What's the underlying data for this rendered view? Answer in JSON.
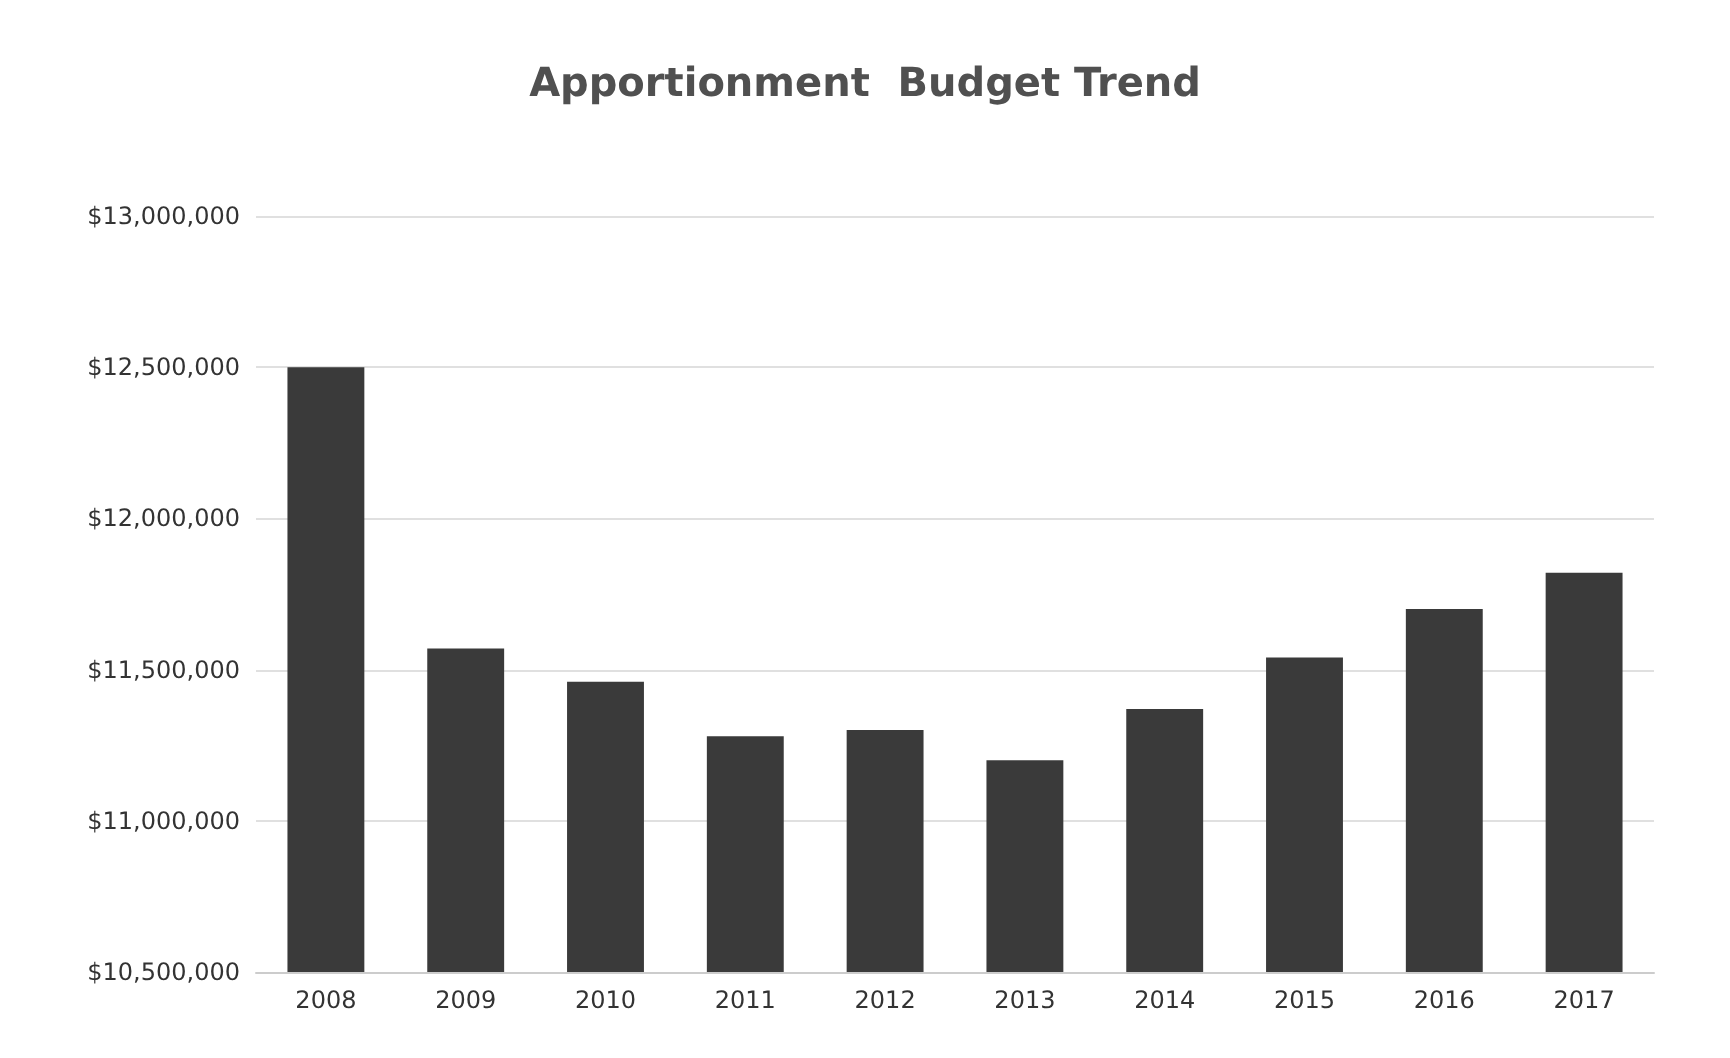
{
  "chart_data": {
    "type": "bar",
    "title": "Apportionment  Budget Trend",
    "categories": [
      "2008",
      "2009",
      "2010",
      "2011",
      "2012",
      "2013",
      "2014",
      "2015",
      "2016",
      "2017"
    ],
    "values": [
      12500000,
      11570000,
      11460000,
      11280000,
      11300000,
      11200000,
      11370000,
      11540000,
      11700000,
      11820000
    ],
    "color": "#3a3a3a",
    "ylim": [
      10500000,
      13000000
    ],
    "yticks": [
      {
        "value": 10500000,
        "label": "$10,500,000"
      },
      {
        "value": 11000000,
        "label": "$11,000,000"
      },
      {
        "value": 11500000,
        "label": "$11,500,000"
      },
      {
        "value": 12000000,
        "label": "$12,000,000"
      },
      {
        "value": 12500000,
        "label": "$12,500,000"
      },
      {
        "value": 13000000,
        "label": "$13,000,000"
      }
    ],
    "grid": "y"
  }
}
